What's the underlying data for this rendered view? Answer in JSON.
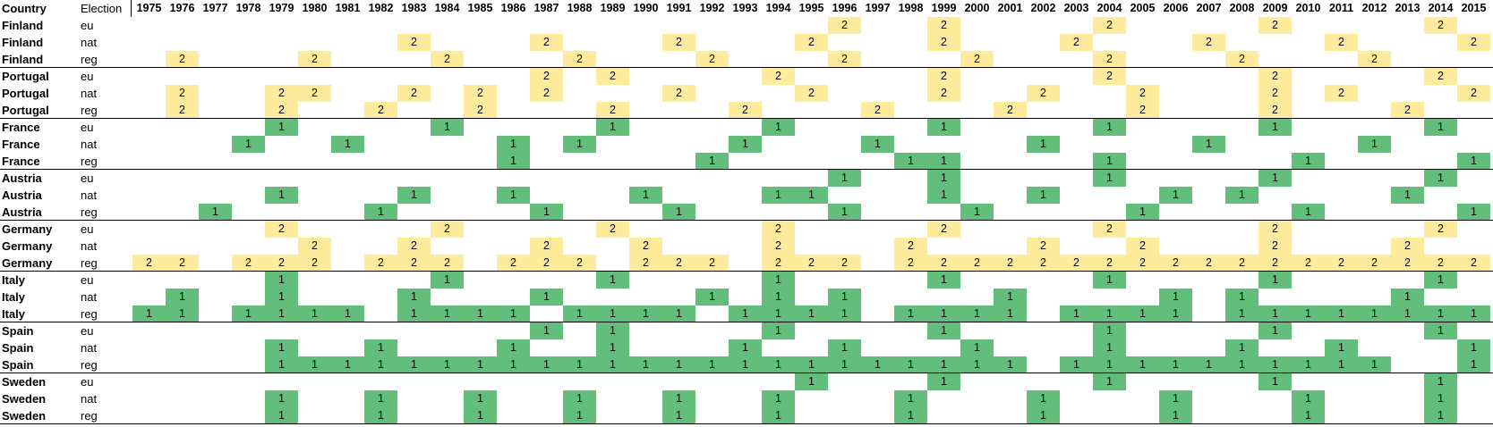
{
  "headers": {
    "country": "Country",
    "election": "Election"
  },
  "years": [
    "1975",
    "1976",
    "1977",
    "1978",
    "1979",
    "1980",
    "1981",
    "1982",
    "1983",
    "1984",
    "1985",
    "1986",
    "1987",
    "1988",
    "1989",
    "1990",
    "1991",
    "1992",
    "1993",
    "1994",
    "1995",
    "1996",
    "1997",
    "1998",
    "1999",
    "2000",
    "2001",
    "2002",
    "2003",
    "2004",
    "2005",
    "2006",
    "2007",
    "2008",
    "2009",
    "2010",
    "2011",
    "2012",
    "2013",
    "2014",
    "2015"
  ],
  "colors": {
    "group1": "#63be7b",
    "group2": "#ffeb9c",
    "gridline": "#000000"
  },
  "rows": [
    {
      "country": "Finland",
      "election": "eu",
      "cells": {
        "1996": "2",
        "1999": "2",
        "2004": "2",
        "2009": "2",
        "2014": "2"
      }
    },
    {
      "country": "Finland",
      "election": "nat",
      "cells": {
        "1983": "2",
        "1987": "2",
        "1991": "2",
        "1995": "2",
        "1999": "2",
        "2003": "2",
        "2007": "2",
        "2011": "2",
        "2015": "2"
      }
    },
    {
      "country": "Finland",
      "election": "reg",
      "cells": {
        "1976": "2",
        "1980": "2",
        "1984": "2",
        "1988": "2",
        "1992": "2",
        "1996": "2",
        "2000": "2",
        "2004": "2",
        "2008": "2",
        "2012": "2"
      }
    },
    {
      "country": "Portugal",
      "election": "eu",
      "cells": {
        "1987": "2",
        "1989": "2",
        "1994": "2",
        "1999": "2",
        "2004": "2",
        "2009": "2",
        "2014": "2"
      }
    },
    {
      "country": "Portugal",
      "election": "nat",
      "cells": {
        "1976": "2",
        "1979": "2",
        "1980": "2",
        "1983": "2",
        "1985": "2",
        "1987": "2",
        "1991": "2",
        "1995": "2",
        "1999": "2",
        "2002": "2",
        "2005": "2",
        "2009": "2",
        "2011": "2",
        "2015": "2"
      }
    },
    {
      "country": "Portugal",
      "election": "reg",
      "cells": {
        "1976": "2",
        "1979": "2",
        "1982": "2",
        "1985": "2",
        "1989": "2",
        "1993": "2",
        "1997": "2",
        "2001": "2",
        "2005": "2",
        "2009": "2",
        "2013": "2"
      }
    },
    {
      "country": "France",
      "election": "eu",
      "cells": {
        "1979": "1",
        "1984": "1",
        "1989": "1",
        "1994": "1",
        "1999": "1",
        "2004": "1",
        "2009": "1",
        "2014": "1"
      }
    },
    {
      "country": "France",
      "election": "nat",
      "cells": {
        "1978": "1",
        "1981": "1",
        "1986": "1",
        "1988": "1",
        "1993": "1",
        "1997": "1",
        "2002": "1",
        "2007": "1",
        "2012": "1"
      }
    },
    {
      "country": "France",
      "election": "reg",
      "cells": {
        "1986": "1",
        "1992": "1",
        "1998": "1",
        "1999": "1",
        "2004": "1",
        "2010": "1",
        "2015": "1"
      }
    },
    {
      "country": "Austria",
      "election": "eu",
      "cells": {
        "1996": "1",
        "1999": "1",
        "2004": "1",
        "2009": "1",
        "2014": "1"
      }
    },
    {
      "country": "Austria",
      "election": "nat",
      "cells": {
        "1979": "1",
        "1983": "1",
        "1986": "1",
        "1990": "1",
        "1994": "1",
        "1995": "1",
        "1999": "1",
        "2002": "1",
        "2006": "1",
        "2008": "1",
        "2013": "1"
      }
    },
    {
      "country": "Austria",
      "election": "reg",
      "cells": {
        "1977": "1",
        "1982": "1",
        "1987": "1",
        "1991": "1",
        "1996": "1",
        "2000": "1",
        "2005": "1",
        "2010": "1",
        "2015": "1"
      }
    },
    {
      "country": "Germany",
      "election": "eu",
      "cells": {
        "1979": "2",
        "1984": "2",
        "1989": "2",
        "1994": "2",
        "1999": "2",
        "2004": "2",
        "2009": "2",
        "2014": "2"
      }
    },
    {
      "country": "Germany",
      "election": "nat",
      "cells": {
        "1980": "2",
        "1983": "2",
        "1987": "2",
        "1990": "2",
        "1994": "2",
        "1998": "2",
        "2002": "2",
        "2005": "2",
        "2009": "2",
        "2013": "2"
      }
    },
    {
      "country": "Germany",
      "election": "reg",
      "cells": {
        "1975": "2",
        "1976": "2",
        "1978": "2",
        "1979": "2",
        "1980": "2",
        "1982": "2",
        "1983": "2",
        "1984": "2",
        "1986": "2",
        "1987": "2",
        "1988": "2",
        "1990": "2",
        "1991": "2",
        "1992": "2",
        "1994": "2",
        "1995": "2",
        "1996": "2",
        "1998": "2",
        "1999": "2",
        "2000": "2",
        "2001": "2",
        "2002": "2",
        "2003": "2",
        "2004": "2",
        "2005": "2",
        "2006": "2",
        "2007": "2",
        "2008": "2",
        "2009": "2",
        "2010": "2",
        "2011": "2",
        "2012": "2",
        "2013": "2",
        "2014": "2",
        "2015": "2"
      }
    },
    {
      "country": "Italy",
      "election": "eu",
      "cells": {
        "1979": "1",
        "1984": "1",
        "1989": "1",
        "1994": "1",
        "1999": "1",
        "2004": "1",
        "2009": "1",
        "2014": "1"
      }
    },
    {
      "country": "Italy",
      "election": "nat",
      "cells": {
        "1976": "1",
        "1979": "1",
        "1983": "1",
        "1987": "1",
        "1992": "1",
        "1994": "1",
        "1996": "1",
        "2001": "1",
        "2006": "1",
        "2008": "1",
        "2013": "1"
      }
    },
    {
      "country": "Italy",
      "election": "reg",
      "cells": {
        "1975": "1",
        "1976": "1",
        "1978": "1",
        "1979": "1",
        "1980": "1",
        "1981": "1",
        "1983": "1",
        "1984": "1",
        "1985": "1",
        "1986": "1",
        "1988": "1",
        "1989": "1",
        "1990": "1",
        "1991": "1",
        "1993": "1",
        "1994": "1",
        "1995": "1",
        "1996": "1",
        "1998": "1",
        "1999": "1",
        "2000": "1",
        "2001": "1",
        "2003": "1",
        "2004": "1",
        "2005": "1",
        "2006": "1",
        "2008": "1",
        "2009": "1",
        "2010": "1",
        "2011": "1",
        "2012": "1",
        "2013": "1",
        "2014": "1",
        "2015": "1"
      }
    },
    {
      "country": "Spain",
      "election": "eu",
      "cells": {
        "1987": "1",
        "1989": "1",
        "1994": "1",
        "1999": "1",
        "2004": "1",
        "2009": "1",
        "2014": "1"
      }
    },
    {
      "country": "Spain",
      "election": "nat",
      "cells": {
        "1979": "1",
        "1982": "1",
        "1986": "1",
        "1989": "1",
        "1993": "1",
        "1996": "1",
        "2000": "1",
        "2004": "1",
        "2008": "1",
        "2011": "1",
        "2015": "1"
      }
    },
    {
      "country": "Spain",
      "election": "reg",
      "cells": {
        "1979": "1",
        "1980": "1",
        "1981": "1",
        "1982": "1",
        "1983": "1",
        "1984": "1",
        "1985": "1",
        "1986": "1",
        "1987": "1",
        "1988": "1",
        "1989": "1",
        "1990": "1",
        "1991": "1",
        "1992": "1",
        "1993": "1",
        "1994": "1",
        "1995": "1",
        "1996": "1",
        "1997": "1",
        "1998": "1",
        "1999": "1",
        "2000": "1",
        "2001": "1",
        "2003": "1",
        "2004": "1",
        "2005": "1",
        "2006": "1",
        "2007": "1",
        "2008": "1",
        "2009": "1",
        "2010": "1",
        "2011": "1",
        "2012": "1",
        "2015": "1"
      }
    },
    {
      "country": "Sweden",
      "election": "eu",
      "cells": {
        "1995": "1",
        "1999": "1",
        "2004": "1",
        "2009": "1",
        "2014": "1"
      }
    },
    {
      "country": "Sweden",
      "election": "nat",
      "cells": {
        "1979": "1",
        "1982": "1",
        "1985": "1",
        "1988": "1",
        "1991": "1",
        "1994": "1",
        "1998": "1",
        "2002": "1",
        "2006": "1",
        "2010": "1",
        "2014": "1"
      }
    },
    {
      "country": "Sweden",
      "election": "reg",
      "cells": {
        "1979": "1",
        "1982": "1",
        "1985": "1",
        "1988": "1",
        "1991": "1",
        "1994": "1",
        "1998": "1",
        "2002": "1",
        "2006": "1",
        "2010": "1",
        "2014": "1"
      }
    }
  ]
}
